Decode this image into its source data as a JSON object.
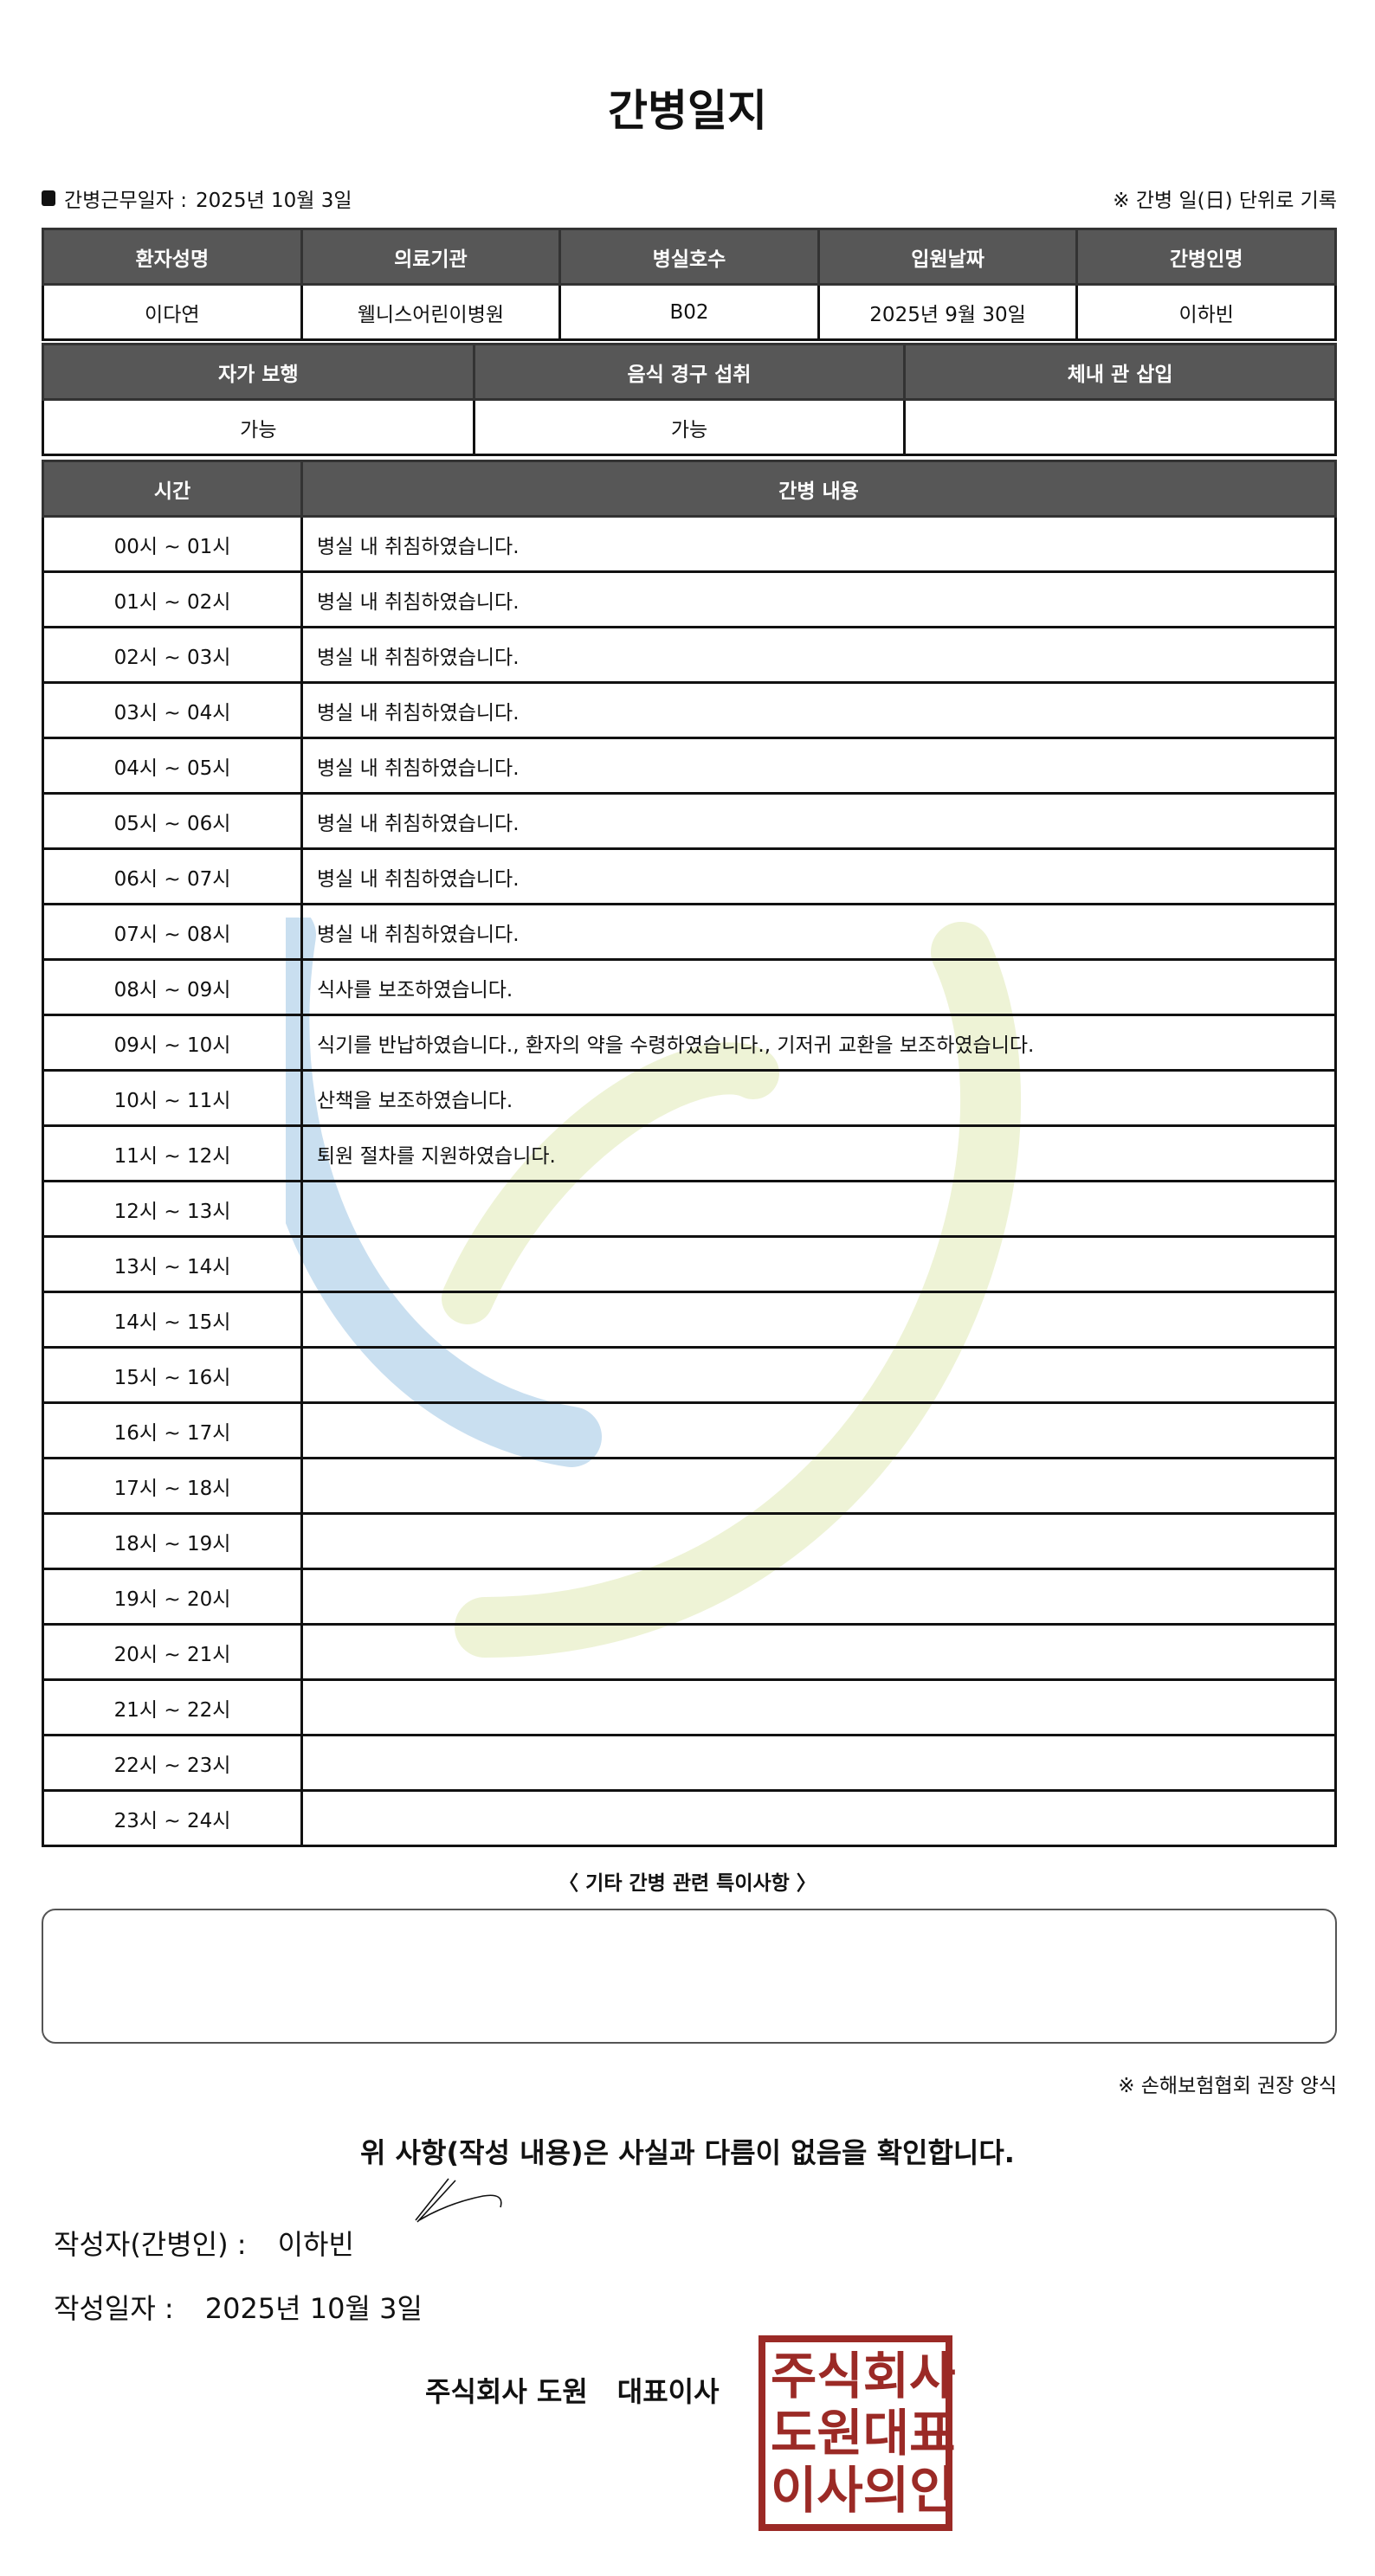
{
  "title": "간병일지",
  "work_date_label": "간병근무일자  :",
  "work_date": "2025년 10월 3일",
  "record_note": "※ 간병 일(日) 단위로 기록",
  "patient_table": {
    "headers": [
      "환자성명",
      "의료기관",
      "병실호수",
      "입원날짜",
      "간병인명"
    ],
    "values": [
      "이다연",
      "웰니스어린이병원",
      "B02",
      "2025년 9월 30일",
      "이하빈"
    ]
  },
  "status_table": {
    "headers": [
      "자가 보행",
      "음식 경구 섭취",
      "체내 관 삽입"
    ],
    "values": [
      "가능",
      "가능",
      ""
    ]
  },
  "log_table": {
    "headers": [
      "시간",
      "간병 내용"
    ],
    "rows": [
      {
        "time": "00시 ~ 01시",
        "content": "병실 내 취침하였습니다."
      },
      {
        "time": "01시 ~ 02시",
        "content": "병실 내 취침하였습니다."
      },
      {
        "time": "02시 ~ 03시",
        "content": "병실 내 취침하였습니다."
      },
      {
        "time": "03시 ~ 04시",
        "content": "병실 내 취침하였습니다."
      },
      {
        "time": "04시 ~ 05시",
        "content": "병실 내 취침하였습니다."
      },
      {
        "time": "05시 ~ 06시",
        "content": "병실 내 취침하였습니다."
      },
      {
        "time": "06시 ~ 07시",
        "content": "병실 내 취침하였습니다."
      },
      {
        "time": "07시 ~ 08시",
        "content": "병실 내 취침하였습니다."
      },
      {
        "time": "08시 ~ 09시",
        "content": "식사를 보조하였습니다."
      },
      {
        "time": "09시 ~ 10시",
        "content": "식기를 반납하였습니다., 환자의 약을 수령하였습니다., 기저귀 교환을 보조하였습니다."
      },
      {
        "time": "10시 ~ 11시",
        "content": "산책을 보조하였습니다."
      },
      {
        "time": "11시 ~ 12시",
        "content": "퇴원 절차를 지원하였습니다."
      },
      {
        "time": "12시 ~ 13시",
        "content": ""
      },
      {
        "time": "13시 ~ 14시",
        "content": ""
      },
      {
        "time": "14시 ~ 15시",
        "content": ""
      },
      {
        "time": "15시 ~ 16시",
        "content": ""
      },
      {
        "time": "16시 ~ 17시",
        "content": ""
      },
      {
        "time": "17시 ~ 18시",
        "content": ""
      },
      {
        "time": "18시 ~ 19시",
        "content": ""
      },
      {
        "time": "19시 ~ 20시",
        "content": ""
      },
      {
        "time": "20시 ~ 21시",
        "content": ""
      },
      {
        "time": "21시 ~ 22시",
        "content": ""
      },
      {
        "time": "22시 ~ 23시",
        "content": ""
      },
      {
        "time": "23시 ~ 24시",
        "content": ""
      }
    ]
  },
  "etc_title": "〈 기타 간병 관련 특이사항 〉",
  "etc_content": "",
  "form_note": "※ 손해보험협회 권장 양식",
  "confirm_text": "위 사항(작성 내용)은 사실과 다름이 없음을 확인합니다.",
  "writer_label": "작성자(간병인) :",
  "writer_name": "이하빈",
  "write_date_label": "작성일자 :",
  "write_date": "2025년 10월 3일",
  "company_name": "주식회사 도원",
  "company_title": "대표이사",
  "stamp_text": [
    "주",
    "식",
    "회",
    "사",
    "도",
    "원",
    "대",
    "표",
    "이",
    "사",
    "의",
    "인"
  ],
  "colors": {
    "header_bg": "#575757",
    "stamp": "#9b2a26",
    "watermark_blue": "#c9dff0",
    "watermark_green": "#eef3d6"
  }
}
